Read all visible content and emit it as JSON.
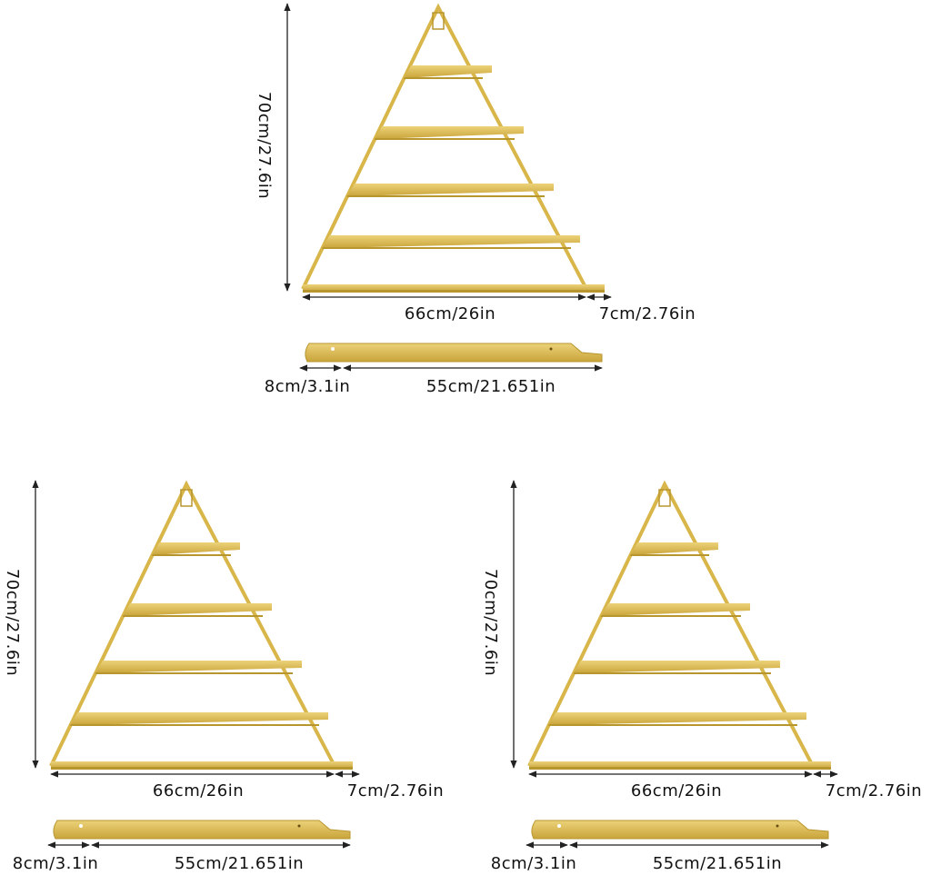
{
  "panels": [
    {
      "height": "70cm/27.6in",
      "width": "66cm/26in",
      "depth": "7cm/2.76in",
      "side_depth": "8cm/3.1in",
      "side_length": "55cm/21.651in"
    },
    {
      "height": "70cm/27.6in",
      "width": "66cm/26in",
      "depth": "7cm/2.76in",
      "side_depth": "8cm/3.1in",
      "side_length": "55cm/21.651in"
    },
    {
      "height": "70cm/27.6in",
      "width": "66cm/26in",
      "depth": "7cm/2.76in",
      "side_depth": "8cm/3.1in",
      "side_length": "55cm/21.651in"
    }
  ]
}
